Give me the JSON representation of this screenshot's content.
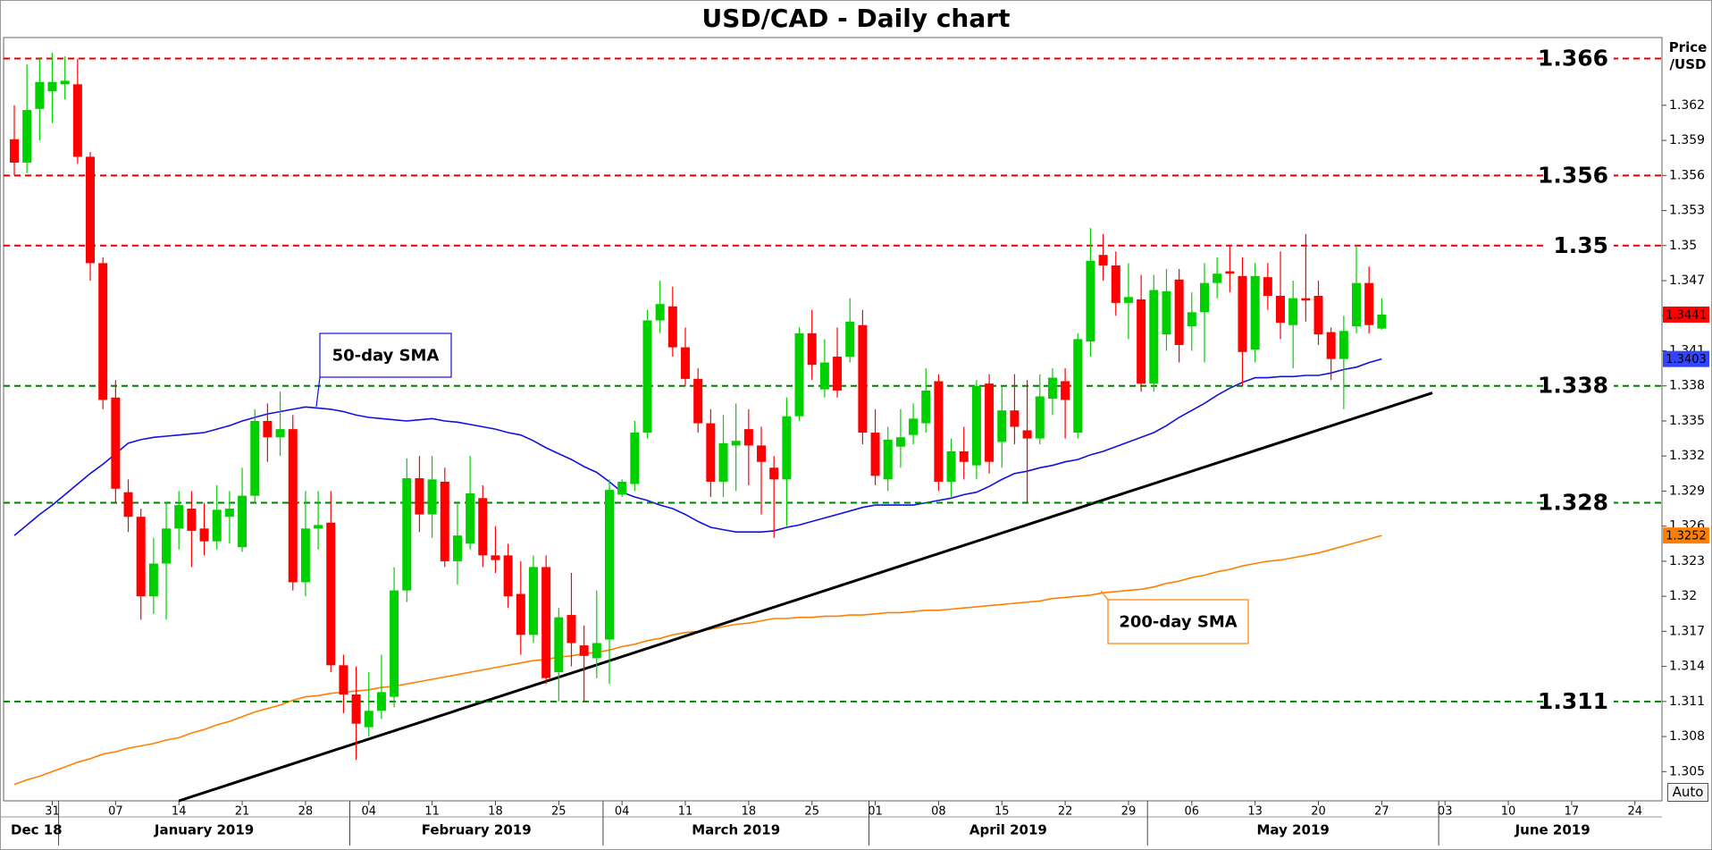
{
  "auto_button": "Auto",
  "chart_data": {
    "type": "candlestick",
    "title": "USD/CAD - Daily chart",
    "y_label": "Price /USD",
    "months": [
      "Dec 18",
      "January 2019",
      "February 2019",
      "March 2019",
      "April 2019",
      "May 2019",
      "June 2019"
    ],
    "up_color": "#00d000",
    "down_color": "#ff0000",
    "ylim": [
      1.3025,
      1.3678
    ],
    "yticks": [
      1.305,
      1.308,
      1.311,
      1.314,
      1.317,
      1.32,
      1.323,
      1.326,
      1.329,
      1.332,
      1.335,
      1.338,
      1.341,
      1.344,
      1.347,
      1.35,
      1.353,
      1.356,
      1.359,
      1.362
    ],
    "grid": false,
    "categories": [
      null,
      null,
      null,
      "31",
      null,
      null,
      null,
      null,
      "07",
      null,
      null,
      null,
      null,
      "14",
      null,
      null,
      null,
      null,
      "21",
      null,
      null,
      null,
      null,
      "28",
      null,
      null,
      null,
      null,
      "04",
      null,
      null,
      null,
      null,
      "11",
      null,
      null,
      null,
      null,
      "18",
      null,
      null,
      null,
      null,
      "25",
      null,
      null,
      null,
      null,
      "04",
      null,
      null,
      null,
      null,
      "11",
      null,
      null,
      null,
      null,
      "18",
      null,
      null,
      null,
      null,
      "25",
      null,
      null,
      null,
      null,
      "01",
      null,
      null,
      null,
      null,
      "08",
      null,
      null,
      null,
      null,
      "15",
      null,
      null,
      null,
      null,
      "22",
      null,
      null,
      null,
      null,
      "29",
      null,
      null,
      null,
      null,
      "06",
      null,
      null,
      null,
      null,
      "13",
      null,
      null,
      null,
      null,
      "20",
      null,
      null,
      null,
      null,
      "27",
      null,
      null,
      null,
      null,
      "03",
      null,
      null,
      null,
      null,
      "10",
      null,
      null,
      null,
      null,
      "17",
      null,
      null,
      null,
      null,
      "24",
      null,
      null
    ],
    "open": [
      1.3591,
      1.3571,
      1.3617,
      1.3632,
      1.3638,
      1.3638,
      1.3576,
      1.3485,
      1.337,
      1.3289,
      1.3268,
      1.32,
      1.3228,
      1.3258,
      1.3275,
      1.3258,
      1.3247,
      1.3268,
      1.3242,
      1.3286,
      1.335,
      1.3336,
      1.3343,
      1.3212,
      1.3258,
      1.3263,
      1.3141,
      1.3116,
      1.3088,
      1.3102,
      1.3114,
      1.3205,
      1.3301,
      1.327,
      1.3298,
      1.323,
      1.3245,
      1.3284,
      1.3235,
      1.3235,
      1.3202,
      1.3167,
      1.3225,
      1.3135,
      1.3184,
      1.3158,
      1.3147,
      1.3163,
      1.3287,
      1.3296,
      1.334,
      1.3436,
      1.3448,
      1.3413,
      1.3386,
      1.3348,
      1.3298,
      1.3329,
      1.3343,
      1.3329,
      1.331,
      1.33,
      1.3354,
      1.3425,
      1.3377,
      1.3405,
      1.3405,
      1.3432,
      1.334,
      1.33,
      1.3328,
      1.3338,
      1.3348,
      1.3384,
      1.3298,
      1.3324,
      1.3312,
      1.3382,
      1.3332,
      1.3359,
      1.3342,
      1.3335,
      1.3369,
      1.3384,
      1.334,
      1.3418,
      1.3492,
      1.3483,
      1.3451,
      1.3454,
      1.3382,
      1.3424,
      1.3471,
      1.3431,
      1.3443,
      1.3468,
      1.3478,
      1.3474,
      1.3411,
      1.3473,
      1.3457,
      1.3432,
      1.3455,
      1.3457,
      1.3426,
      1.3403,
      1.3431,
      1.3468,
      1.3429,
      null,
      null,
      null,
      null,
      null,
      null,
      null,
      null,
      null,
      null,
      null,
      null,
      null,
      null,
      null,
      null,
      null,
      null,
      null,
      null,
      null,
      null
    ],
    "high": [
      1.362,
      1.3655,
      1.366,
      1.3665,
      1.3662,
      1.366,
      1.358,
      1.349,
      1.3385,
      1.33,
      1.3275,
      1.325,
      1.328,
      1.329,
      1.329,
      1.328,
      1.3295,
      1.329,
      1.331,
      1.336,
      1.3365,
      1.3375,
      1.3355,
      1.329,
      1.329,
      1.329,
      1.315,
      1.314,
      1.3135,
      1.315,
      1.3225,
      1.3318,
      1.332,
      1.332,
      1.331,
      1.328,
      1.332,
      1.3295,
      1.326,
      1.3245,
      1.323,
      1.3235,
      1.3235,
      1.319,
      1.322,
      1.3175,
      1.3205,
      1.33,
      1.33,
      1.335,
      1.3445,
      1.347,
      1.3465,
      1.343,
      1.3395,
      1.336,
      1.3355,
      1.3365,
      1.336,
      1.3345,
      1.332,
      1.337,
      1.343,
      1.3445,
      1.342,
      1.343,
      1.3455,
      1.3445,
      1.336,
      1.3345,
      1.336,
      1.3365,
      1.3395,
      1.339,
      1.3335,
      1.3345,
      1.3385,
      1.339,
      1.338,
      1.339,
      1.3385,
      1.339,
      1.3395,
      1.3395,
      1.3425,
      1.3515,
      1.351,
      1.3495,
      1.3485,
      1.3475,
      1.3475,
      1.348,
      1.348,
      1.346,
      1.3485,
      1.349,
      1.35,
      1.349,
      1.3485,
      1.3485,
      1.3495,
      1.347,
      1.351,
      1.347,
      1.343,
      1.344,
      1.35,
      1.3482,
      1.3455,
      null,
      null,
      null,
      null,
      null,
      null,
      null,
      null,
      null,
      null,
      null,
      null,
      null,
      null,
      null,
      null,
      null,
      null,
      null,
      null,
      null,
      null
    ],
    "low": [
      1.356,
      1.3562,
      1.359,
      1.3605,
      1.3625,
      1.357,
      1.347,
      1.336,
      1.328,
      1.3255,
      1.318,
      1.3185,
      1.318,
      1.324,
      1.3225,
      1.3235,
      1.324,
      1.3245,
      1.3238,
      1.328,
      1.3315,
      1.332,
      1.3205,
      1.32,
      1.324,
      1.3135,
      1.31,
      1.306,
      1.308,
      1.3095,
      1.3105,
      1.3195,
      1.3255,
      1.325,
      1.3225,
      1.321,
      1.324,
      1.3225,
      1.322,
      1.319,
      1.315,
      1.316,
      1.3125,
      1.311,
      1.314,
      1.311,
      1.313,
      1.3125,
      1.3285,
      1.329,
      1.3335,
      1.3425,
      1.3405,
      1.338,
      1.334,
      1.3285,
      1.3285,
      1.329,
      1.3295,
      1.327,
      1.325,
      1.326,
      1.335,
      1.3385,
      1.337,
      1.337,
      1.34,
      1.333,
      1.3295,
      1.329,
      1.331,
      1.333,
      1.334,
      1.329,
      1.3285,
      1.33,
      1.33,
      1.3305,
      1.331,
      1.333,
      1.328,
      1.333,
      1.3355,
      1.3335,
      1.3335,
      1.3405,
      1.347,
      1.344,
      1.342,
      1.3375,
      1.3375,
      1.341,
      1.34,
      1.341,
      1.34,
      1.3455,
      1.346,
      1.338,
      1.34,
      1.3445,
      1.342,
      1.3395,
      1.3435,
      1.3415,
      1.3385,
      1.336,
      1.3425,
      1.3425,
      1.3428,
      null,
      null,
      null,
      null,
      null,
      null,
      null,
      null,
      null,
      null,
      null,
      null,
      null,
      null,
      null,
      null,
      null,
      null,
      null,
      null,
      null,
      null
    ],
    "close": [
      1.3571,
      1.3616,
      1.364,
      1.364,
      1.3641,
      1.3576,
      1.3485,
      1.3368,
      1.3292,
      1.3268,
      1.32,
      1.3228,
      1.3258,
      1.3278,
      1.3256,
      1.3247,
      1.3274,
      1.3275,
      1.3286,
      1.335,
      1.3336,
      1.3343,
      1.3212,
      1.3258,
      1.3261,
      1.3141,
      1.3116,
      1.3091,
      1.3102,
      1.3118,
      1.3205,
      1.3301,
      1.327,
      1.33,
      1.323,
      1.3252,
      1.3288,
      1.3235,
      1.3231,
      1.32,
      1.3167,
      1.3225,
      1.313,
      1.3182,
      1.316,
      1.3149,
      1.316,
      1.3291,
      1.3298,
      1.334,
      1.3436,
      1.345,
      1.3413,
      1.3386,
      1.3348,
      1.3298,
      1.3331,
      1.3333,
      1.3329,
      1.3315,
      1.33,
      1.3354,
      1.3425,
      1.3398,
      1.34,
      1.3376,
      1.3435,
      1.334,
      1.3303,
      1.3334,
      1.3336,
      1.3352,
      1.3376,
      1.3298,
      1.3324,
      1.3315,
      1.338,
      1.3315,
      1.3359,
      1.3345,
      1.3335,
      1.3371,
      1.3387,
      1.3368,
      1.342,
      1.3487,
      1.3483,
      1.3451,
      1.3456,
      1.3382,
      1.3462,
      1.3461,
      1.3415,
      1.3443,
      1.3468,
      1.3476,
      1.3476,
      1.3409,
      1.3474,
      1.3457,
      1.3434,
      1.3455,
      1.3453,
      1.3424,
      1.3403,
      1.3427,
      1.3468,
      1.3432,
      1.3441,
      null,
      null,
      null,
      null,
      null,
      null,
      null,
      null,
      null,
      null,
      null,
      null,
      null,
      null,
      null,
      null,
      null,
      null,
      null,
      null,
      null,
      null
    ],
    "series": [
      {
        "name": "50-day SMA",
        "color": "#1010e0",
        "values": [
          1.3252,
          1.3261,
          1.327,
          1.3278,
          1.3287,
          1.3296,
          1.3305,
          1.3313,
          1.3322,
          1.3331,
          1.3334,
          1.3336,
          1.3337,
          1.3338,
          1.3339,
          1.334,
          1.3343,
          1.3346,
          1.335,
          1.3353,
          1.3356,
          1.3358,
          1.336,
          1.3362,
          1.3361,
          1.336,
          1.3358,
          1.3355,
          1.3353,
          1.3352,
          1.3351,
          1.335,
          1.3351,
          1.3352,
          1.335,
          1.3349,
          1.3347,
          1.3345,
          1.3343,
          1.334,
          1.3338,
          1.3333,
          1.3327,
          1.3322,
          1.3317,
          1.3311,
          1.3306,
          1.3298,
          1.3289,
          1.3285,
          1.3282,
          1.3278,
          1.3275,
          1.327,
          1.3264,
          1.3259,
          1.3257,
          1.3255,
          1.3255,
          1.3255,
          1.3256,
          1.3259,
          1.3261,
          1.3264,
          1.3267,
          1.327,
          1.3273,
          1.3276,
          1.3278,
          1.3278,
          1.3278,
          1.3278,
          1.328,
          1.3282,
          1.3284,
          1.3287,
          1.3289,
          1.3294,
          1.33,
          1.3305,
          1.3307,
          1.331,
          1.3312,
          1.3315,
          1.3317,
          1.3321,
          1.3324,
          1.3328,
          1.3332,
          1.3336,
          1.334,
          1.3346,
          1.3353,
          1.3359,
          1.3365,
          1.3372,
          1.3378,
          1.3383,
          1.3387,
          1.3387,
          1.3388,
          1.3388,
          1.3389,
          1.3389,
          1.3391,
          1.3394,
          1.3396,
          1.34,
          1.3403,
          null,
          null,
          null,
          null,
          null,
          null,
          null,
          null,
          null,
          null,
          null,
          null,
          null,
          null,
          null,
          null,
          null,
          null,
          null,
          null,
          null,
          null
        ]
      },
      {
        "name": "200-day SMA",
        "color": "#ff8000",
        "values": [
          1.3039,
          1.3043,
          1.3046,
          1.305,
          1.3054,
          1.3058,
          1.3061,
          1.3065,
          1.3067,
          1.307,
          1.3072,
          1.3074,
          1.3077,
          1.3079,
          1.3083,
          1.3086,
          1.309,
          1.3093,
          1.3097,
          1.3101,
          1.3104,
          1.3107,
          1.3111,
          1.3114,
          1.3115,
          1.3117,
          1.3118,
          1.3119,
          1.312,
          1.3122,
          1.3123,
          1.3125,
          1.3127,
          1.3129,
          1.3131,
          1.3133,
          1.3135,
          1.3137,
          1.3139,
          1.3141,
          1.3143,
          1.3145,
          1.3146,
          1.3148,
          1.3149,
          1.3151,
          1.3152,
          1.3154,
          1.3157,
          1.3159,
          1.3162,
          1.3164,
          1.3167,
          1.3169,
          1.317,
          1.3172,
          1.3174,
          1.3176,
          1.3177,
          1.3179,
          1.3181,
          1.3181,
          1.3182,
          1.3182,
          1.3183,
          1.3183,
          1.3184,
          1.3184,
          1.3185,
          1.3186,
          1.3186,
          1.3187,
          1.3188,
          1.3188,
          1.3189,
          1.319,
          1.3191,
          1.3192,
          1.3193,
          1.3194,
          1.3195,
          1.3196,
          1.3198,
          1.3199,
          1.32,
          1.3201,
          1.3203,
          1.3204,
          1.3205,
          1.3206,
          1.3208,
          1.3211,
          1.3213,
          1.3216,
          1.3218,
          1.3221,
          1.3223,
          1.3226,
          1.3228,
          1.323,
          1.3231,
          1.3233,
          1.3235,
          1.3237,
          1.324,
          1.3243,
          1.3246,
          1.3249,
          1.3252,
          null,
          null,
          null,
          null,
          null,
          null,
          null,
          null,
          null,
          null,
          null,
          null,
          null,
          null,
          null,
          null,
          null,
          null,
          null,
          null,
          null,
          null
        ]
      }
    ],
    "levels": [
      {
        "value": 1.366,
        "color": "#e00000"
      },
      {
        "value": 1.356,
        "color": "#e00000"
      },
      {
        "value": 1.35,
        "color": "#e00000"
      },
      {
        "value": 1.338,
        "color": "#008000"
      },
      {
        "value": 1.328,
        "color": "#008000"
      },
      {
        "value": 1.311,
        "color": "#008000"
      }
    ],
    "trendline": {
      "x": [
        13,
        112
      ],
      "values": [
        1.3025,
        1.3374
      ],
      "color": "#000000"
    }
  }
}
